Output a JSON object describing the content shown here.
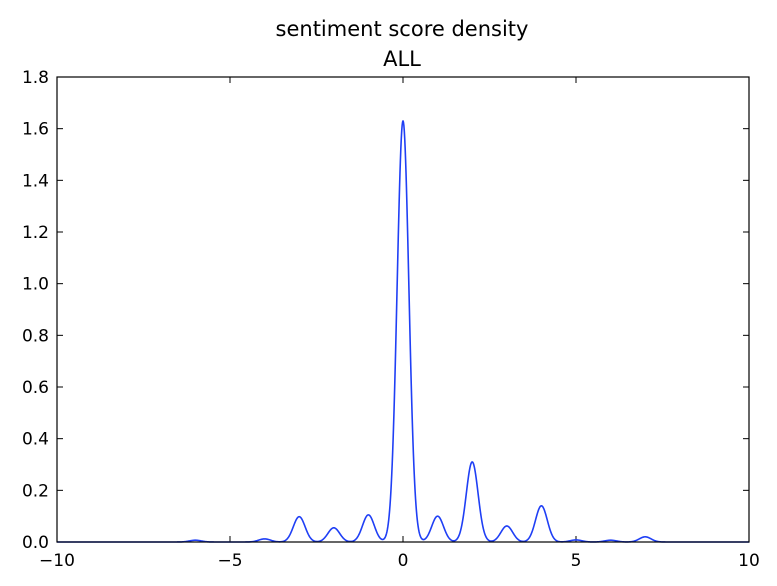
{
  "chart_data": {
    "type": "line",
    "title": "sentiment score density",
    "subtitle": "ALL",
    "xlabel": "",
    "ylabel": "",
    "xlim": [
      -10,
      10
    ],
    "ylim": [
      0,
      1.8
    ],
    "x_ticks": [
      -10,
      -5,
      0,
      5,
      10
    ],
    "x_tick_labels": [
      "−10",
      "−5",
      "0",
      "5",
      "10"
    ],
    "y_ticks": [
      0.0,
      0.2,
      0.4,
      0.6,
      0.8,
      1.0,
      1.2,
      1.4,
      1.6,
      1.8
    ],
    "y_tick_labels": [
      "0.0",
      "0.2",
      "0.4",
      "0.6",
      "0.8",
      "1.0",
      "1.2",
      "1.4",
      "1.6",
      "1.8"
    ],
    "grid": false,
    "line_color": "#1f3ff5",
    "series": [
      {
        "peaks": [
          {
            "x": -6,
            "density": 0.007
          },
          {
            "x": -4,
            "density": 0.012
          },
          {
            "x": -3,
            "density": 0.098
          },
          {
            "x": -2,
            "density": 0.055
          },
          {
            "x": -1,
            "density": 0.105
          },
          {
            "x": 0,
            "density": 1.63
          },
          {
            "x": 1,
            "density": 0.1
          },
          {
            "x": 2,
            "density": 0.31
          },
          {
            "x": 3,
            "density": 0.062
          },
          {
            "x": 4,
            "density": 0.14
          },
          {
            "x": 5,
            "density": 0.008
          },
          {
            "x": 6,
            "density": 0.007
          },
          {
            "x": 7,
            "density": 0.02
          }
        ],
        "peak_width": 0.17
      }
    ]
  }
}
